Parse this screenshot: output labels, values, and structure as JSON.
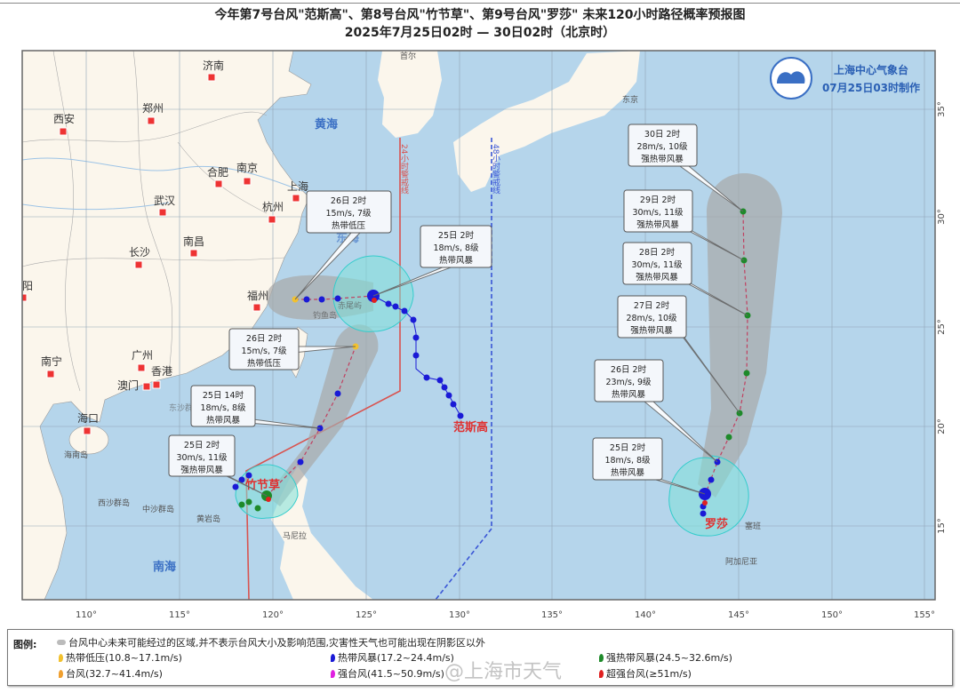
{
  "title": {
    "line1": "今年第7号台风\"范斯高\"、第8号台风\"竹节草\"、第9号台风\"罗莎\" 未来120小时路径概率预报图",
    "line2": "2025年7月25日02时 — 30日02时（北京时）"
  },
  "issuer": {
    "name": "上海中心气象台",
    "time": "07月25日03时制作"
  },
  "colors": {
    "land": "#fbf6ec",
    "sea": "#b5d5eb",
    "warning_24h": "#d9534f",
    "warning_48h": "#3a56d6",
    "cone": "#a8a8a8",
    "wind_circle": "#7fe0d8"
  },
  "map": {
    "cities": [
      "济南",
      "郑州",
      "西安",
      "合肥",
      "南京",
      "上海",
      "杭州",
      "武汉",
      "南昌",
      "长沙",
      "福州",
      "阳",
      "南宁",
      "广州",
      "香港",
      "澳门",
      "海口"
    ],
    "places": [
      "海南岛",
      "西沙群岛",
      "中沙群岛",
      "黄岩岛",
      "马尼拉",
      "首尔",
      "东京",
      "塞班",
      "阿加尼亚",
      "东沙群岛",
      "钓鱼岛",
      "赤尾屿"
    ],
    "seas": [
      "黄海",
      "东海",
      "南海"
    ],
    "warning_24h": "24小时警戒线",
    "warning_48h": "48小时警戒线",
    "lon_ticks": [
      "110°",
      "115°",
      "120°",
      "125°",
      "130°",
      "135°",
      "140°",
      "145°",
      "150°",
      "155°"
    ],
    "lat_ticks": [
      "35°",
      "30°",
      "25°",
      "20°",
      "15°"
    ]
  },
  "typhoons": [
    {
      "name": "范斯高",
      "forecasts": [
        {
          "time": "25日 2时",
          "wind": "18m/s, 8级",
          "level": "热带风暴"
        },
        {
          "time": "26日 2时",
          "wind": "15m/s, 7级",
          "level": "热带低压"
        }
      ]
    },
    {
      "name": "竹节草",
      "forecasts": [
        {
          "time": "25日 2时",
          "wind": "30m/s, 11级",
          "level": "强热带风暴"
        },
        {
          "time": "25日 14时",
          "wind": "18m/s, 8级",
          "level": "热带风暴"
        },
        {
          "time": "26日 2时",
          "wind": "15m/s, 7级",
          "level": "热带低压"
        }
      ]
    },
    {
      "name": "罗莎",
      "forecasts": [
        {
          "time": "25日 2时",
          "wind": "18m/s, 8级",
          "level": "热带风暴"
        },
        {
          "time": "26日 2时",
          "wind": "23m/s, 9级",
          "level": "热带风暴"
        },
        {
          "time": "27日 2时",
          "wind": "28m/s, 10级",
          "level": "强热带风暴"
        },
        {
          "time": "28日 2时",
          "wind": "30m/s, 11级",
          "level": "强热带风暴"
        },
        {
          "time": "29日 2时",
          "wind": "30m/s, 11级",
          "level": "强热带风暴"
        },
        {
          "time": "30日 2时",
          "wind": "28m/s, 10级",
          "level": "强热带风暴"
        }
      ]
    }
  ],
  "legend": {
    "title": "图例:",
    "cone_note": "台风中心未来可能经过的区域,并不表示台风大小及影响范围,灾害性天气也可能出现在阴影区以外",
    "items": [
      {
        "label": "热带低压(10.8~17.1m/s)",
        "color": "#f2c12e"
      },
      {
        "label": "热带风暴(17.2~24.4m/s)",
        "color": "#1a1ad6"
      },
      {
        "label": "强热带风暴(24.5~32.6m/s)",
        "color": "#1e8a2a"
      },
      {
        "label": "台风(32.7~41.4m/s)",
        "color": "#f0a030"
      },
      {
        "label": "强台风(41.5~50.9m/s)",
        "color": "#e020e0"
      },
      {
        "label": "超强台风(≥51m/s)",
        "color": "#e02020"
      }
    ]
  },
  "watermark": "@上海市天气"
}
